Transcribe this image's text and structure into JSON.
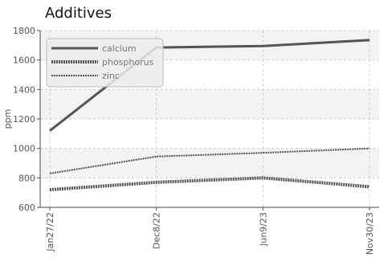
{
  "chart_data": {
    "type": "line",
    "title": "Additives",
    "xlabel": "",
    "ylabel": "ppm",
    "categories": [
      "Jan27/22",
      "Dec8/22",
      "Jun9/23",
      "Nov30/23"
    ],
    "ylim": [
      600,
      1800
    ],
    "yticks": [
      600,
      800,
      1000,
      1200,
      1400,
      1600,
      1800
    ],
    "grid": true,
    "legend_position": "top-left",
    "series": [
      {
        "name": "calcium",
        "values": [
          1120,
          1685,
          1695,
          1735
        ],
        "color": "#555555",
        "style": "solid"
      },
      {
        "name": "phosphorus",
        "values": [
          720,
          770,
          800,
          740
        ],
        "color": "#555555",
        "style": "dashed"
      },
      {
        "name": "zinc",
        "values": [
          830,
          945,
          970,
          1000
        ],
        "color": "#555555",
        "style": "dashed"
      }
    ]
  }
}
